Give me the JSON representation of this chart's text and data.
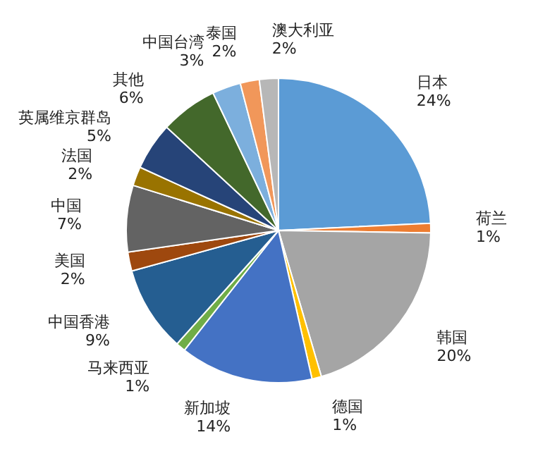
{
  "chart_data": {
    "type": "pie",
    "categories": [
      "日本",
      "荷兰",
      "韩国",
      "德国",
      "新加坡",
      "马来西亚",
      "中国香港",
      "美国",
      "中国",
      "法国",
      "英属维京群岛",
      "其他",
      "中国台湾",
      "泰国",
      "澳大利亚"
    ],
    "values": [
      24,
      1,
      20,
      1,
      14,
      1,
      9,
      2,
      7,
      2,
      5,
      6,
      3,
      2,
      2
    ],
    "value_labels": [
      "24%",
      "1%",
      "20%",
      "1%",
      "14%",
      "1%",
      "9%",
      "2%",
      "7%",
      "2%",
      "5%",
      "6%",
      "3%",
      "2%",
      "2%"
    ],
    "colors": [
      "#5b9bd5",
      "#ed7d31",
      "#a5a5a5",
      "#ffc000",
      "#4472c4",
      "#70ad47",
      "#255e91",
      "#9e480e",
      "#636363",
      "#997300",
      "#264478",
      "#43682b",
      "#7cafdd",
      "#f1975a",
      "#b7b7b7"
    ]
  }
}
